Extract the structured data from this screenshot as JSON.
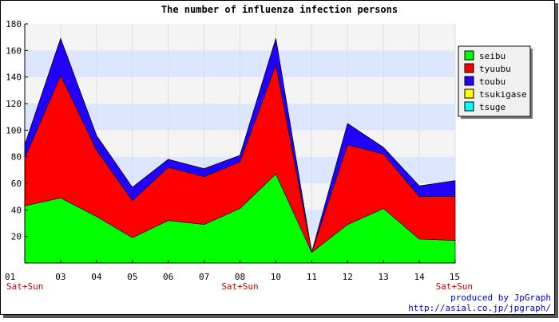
{
  "chart_data": {
    "type": "area",
    "stacked": true,
    "title": "The number of influenza infection persons",
    "categories": [
      "01",
      "03",
      "04",
      "05",
      "06",
      "07",
      "08",
      "10",
      "11",
      "12",
      "13",
      "14",
      "15"
    ],
    "weekend_labels": [
      "Sat+Sun",
      "",
      "",
      "",
      "",
      "",
      "Sat+Sun",
      "",
      "",
      "",
      "",
      "",
      "Sat+Sun"
    ],
    "ylim": [
      0,
      180
    ],
    "yticks": [
      20,
      40,
      60,
      80,
      100,
      120,
      140,
      160,
      180
    ],
    "grid": true,
    "legend_position": "right",
    "series": [
      {
        "name": "seibu",
        "color": "#00ff00",
        "values": [
          43,
          49,
          35,
          19,
          32,
          29,
          41,
          67,
          8,
          29,
          41,
          18,
          17
        ]
      },
      {
        "name": "tyuubu",
        "color": "#ff0000",
        "values": [
          36,
          92,
          50,
          28,
          40,
          36,
          35,
          82,
          0,
          60,
          41,
          32,
          33
        ]
      },
      {
        "name": "toubu",
        "color": "#2200ff",
        "values": [
          10,
          28,
          11,
          10,
          6,
          6,
          5,
          20,
          0,
          16,
          5,
          8,
          12
        ]
      },
      {
        "name": "tsukigase",
        "color": "#ffff00",
        "values": [
          0,
          0,
          0,
          0,
          0,
          0,
          0,
          0,
          0,
          0,
          0,
          0,
          0
        ]
      },
      {
        "name": "tsuge",
        "color": "#00ffff",
        "values": [
          0,
          0,
          0,
          0,
          0,
          0,
          0,
          0,
          0,
          0,
          0,
          0,
          0
        ]
      }
    ]
  },
  "credits": {
    "line1": "produced by JpGraph",
    "line2": "http://asial.co.jp/jpgraph/"
  }
}
